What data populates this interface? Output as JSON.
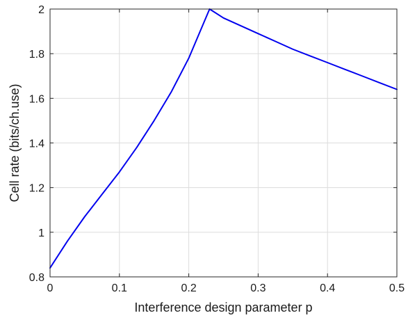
{
  "chart_data": {
    "type": "line",
    "title": "",
    "xlabel": "Interference design parameter p",
    "ylabel": "Cell rate (bits/ch.use)",
    "xlim": [
      0,
      0.5
    ],
    "ylim": [
      0.8,
      2
    ],
    "x_ticks": [
      0,
      0.1,
      0.2,
      0.3,
      0.4,
      0.5
    ],
    "x_tick_labels": [
      "0",
      "0.1",
      "0.2",
      "0.3",
      "0.4",
      "0.5"
    ],
    "y_ticks": [
      0.8,
      1,
      1.2,
      1.4,
      1.6,
      1.8,
      2
    ],
    "y_tick_labels": [
      "0.8",
      "1",
      "1.2",
      "1.4",
      "1.6",
      "1.8",
      "2"
    ],
    "grid": true,
    "series": [
      {
        "color": "#0000ee",
        "x": [
          0,
          0.025,
          0.05,
          0.075,
          0.1,
          0.125,
          0.15,
          0.175,
          0.2,
          0.215,
          0.23,
          0.25,
          0.275,
          0.3,
          0.325,
          0.35,
          0.375,
          0.4,
          0.425,
          0.45,
          0.475,
          0.5
        ],
        "y": [
          0.84,
          0.96,
          1.07,
          1.17,
          1.27,
          1.38,
          1.5,
          1.63,
          1.78,
          1.89,
          2.0,
          1.96,
          1.925,
          1.89,
          1.855,
          1.82,
          1.79,
          1.76,
          1.73,
          1.7,
          1.67,
          1.64
        ]
      }
    ]
  }
}
